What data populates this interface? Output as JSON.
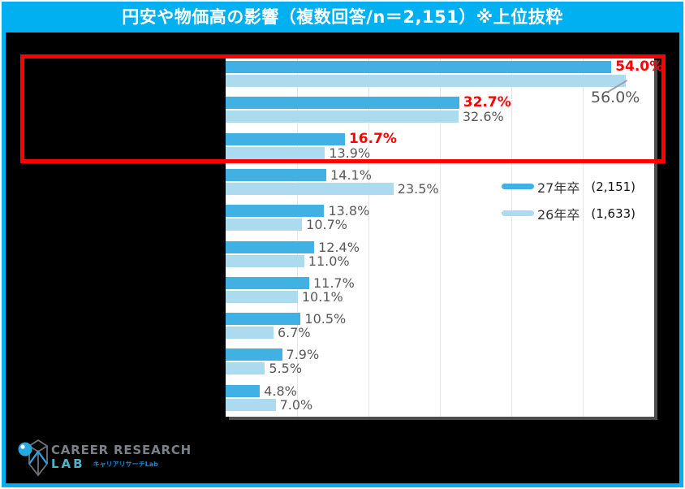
{
  "title_bar": {
    "text": "円安や物価高の影響（複数回答/n＝2,151）※上位抜粋"
  },
  "chart_data": {
    "type": "bar",
    "orientation": "horizontal",
    "title": "円安や物価高の影響（複数回答/n＝2,151）※上位抜粋",
    "x_axis": {
      "min": 0,
      "max": 60,
      "gridline_step": 10,
      "tick_labels_visible": false
    },
    "category_labels_visible": false,
    "series": [
      {
        "name": "27年卒",
        "sample_size": "(2,151)",
        "color": "#41B1E4",
        "values": [
          54.0,
          32.7,
          16.7,
          14.1,
          13.8,
          12.4,
          11.7,
          10.5,
          7.9,
          4.8
        ]
      },
      {
        "name": "26年卒",
        "sample_size": "(1,633)",
        "color": "#ACDAEE",
        "values": [
          56.0,
          32.6,
          13.9,
          23.5,
          10.7,
          11.0,
          10.1,
          6.7,
          5.5,
          7.0
        ]
      }
    ],
    "value_suffix": "%",
    "highlighted_rows": [
      0,
      1,
      2
    ],
    "label_colors": {
      "normal": "#595959",
      "highlight": "#FF0000"
    },
    "legend_position": "right-middle",
    "grid": true
  },
  "legend": {
    "items": [
      {
        "label": "27年卒",
        "count": "(2,151)"
      },
      {
        "label": "26年卒",
        "count": "(1,633)"
      }
    ]
  },
  "logo": {
    "line1": "CAREER RESEARCH",
    "line2": "LAB",
    "subtitle": "キャリアリサーチLab"
  },
  "colors": {
    "frame": "#00B0F0",
    "background": "#000000",
    "highlight_box": "#FF0000",
    "bar_dark": "#41B1E4",
    "bar_light": "#ACDAEE",
    "value_label": "#595959"
  }
}
